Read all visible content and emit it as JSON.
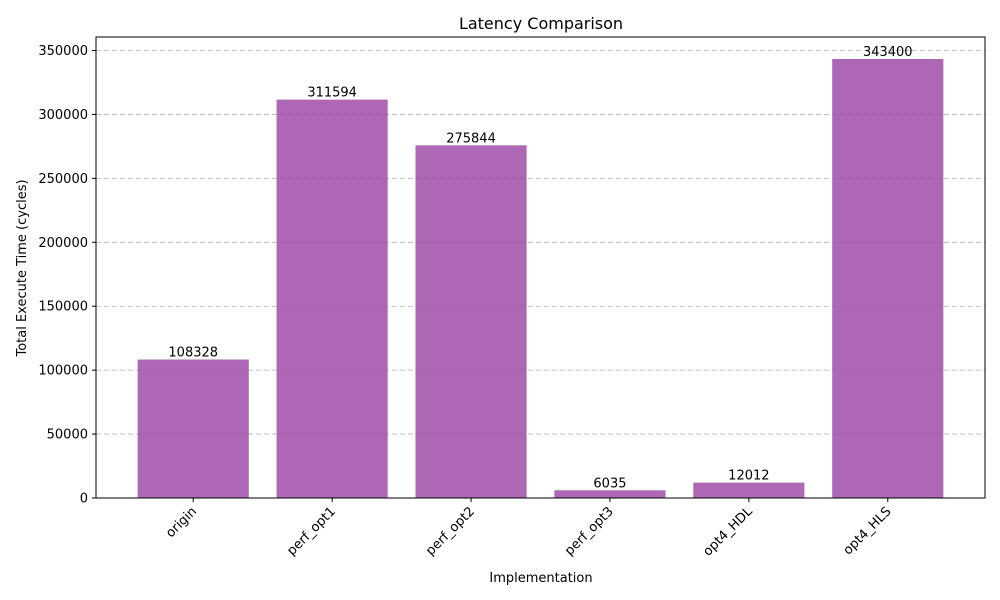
{
  "chart_data": {
    "type": "bar",
    "title": "Latency Comparison",
    "xlabel": "Implementation",
    "ylabel": "Total Execute Time (cycles)",
    "categories": [
      "origin",
      "perf_opt1",
      "perf_opt2",
      "perf_opt3",
      "opt4_HDL",
      "opt4_HLS"
    ],
    "values": [
      108328,
      311594,
      275844,
      6035,
      12012,
      343400
    ],
    "data_labels": [
      "108328",
      "311594",
      "275844",
      "6035",
      "12012",
      "343400"
    ],
    "yticks": [
      0,
      50000,
      100000,
      150000,
      200000,
      250000,
      300000,
      350000
    ],
    "ytick_labels": [
      "0",
      "50000",
      "100000",
      "150000",
      "200000",
      "250000",
      "300000",
      "350000"
    ],
    "ylim": [
      0,
      360570
    ],
    "grid": "y",
    "bar_color": "#a04ca8",
    "bar_opacity": 0.85
  }
}
